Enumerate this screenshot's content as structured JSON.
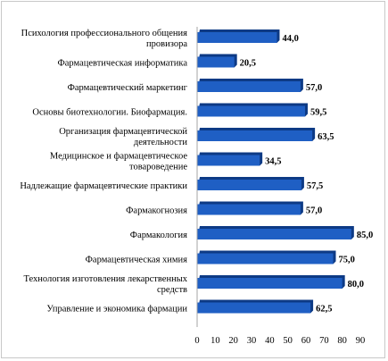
{
  "chart_data": {
    "type": "bar",
    "orientation": "horizontal",
    "categories": [
      [
        "Психология профессионального общения",
        "провизора"
      ],
      [
        "Фармацевтическая информатика"
      ],
      [
        "Фармацевтический маркетинг"
      ],
      [
        "Основы биотехнологии. Биофармация."
      ],
      [
        "Организация фармацевтической",
        "деятельности"
      ],
      [
        "Медицинское и фармацевтическое",
        "товароведение"
      ],
      [
        "Надлежащие фармацевтические практики"
      ],
      [
        "Фармакогнозия"
      ],
      [
        "Фармакология"
      ],
      [
        "Фармацевтическая химия"
      ],
      [
        "Технология изготовления лекарственных",
        "средств"
      ],
      [
        "Управление и экономика фармации"
      ]
    ],
    "values": [
      44.0,
      20.5,
      57.0,
      59.5,
      63.5,
      34.5,
      57.5,
      57.0,
      85.0,
      75.0,
      80.0,
      62.5
    ],
    "value_labels": [
      "44,0",
      "20,5",
      "57,0",
      "59,5",
      "63,5",
      "34,5",
      "57,5",
      "57,0",
      "85,0",
      "75,0",
      "80,0",
      "62,5"
    ],
    "xlim": [
      0,
      90
    ],
    "xticks": [
      "0",
      "10",
      "20",
      "30",
      "40",
      "50",
      "60",
      "70",
      "80",
      "90"
    ],
    "grid": false,
    "legend": "none",
    "bar_color": "#1f5fc4",
    "bar_shadow_color": "#0d3a85",
    "title": "",
    "xlabel": "",
    "ylabel": ""
  }
}
